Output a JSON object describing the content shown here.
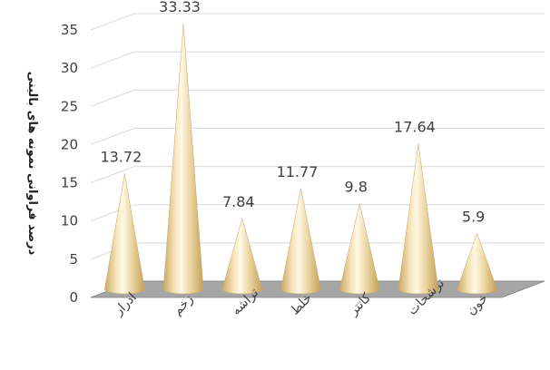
{
  "chart_data": {
    "type": "bar",
    "style": "3d-cone",
    "title": "",
    "ylabel": "درصد فراوانی نمونه های بالینی",
    "xlabel": "",
    "ylim": [
      0,
      35
    ],
    "yticks": [
      0,
      5,
      10,
      15,
      20,
      25,
      30,
      35
    ],
    "grid": true,
    "legend": "none",
    "categories": [
      "ادرار",
      "زخم",
      "تراشه",
      "خلط",
      "کاتتر",
      "ترشحات",
      "خون"
    ],
    "values": [
      13.72,
      33.33,
      7.84,
      11.77,
      9.8,
      17.64,
      5.9
    ],
    "data_labels": [
      "13.72",
      "33.33",
      "7.84",
      "11.77",
      "9.8",
      "17.64",
      "5.9"
    ],
    "colors": {
      "cone_light": "#fff6dc",
      "cone_mid": "#eed9a6",
      "cone_dark": "#c9a864",
      "floor": "#a6a6a6",
      "grid": "#d9d9d9"
    }
  }
}
